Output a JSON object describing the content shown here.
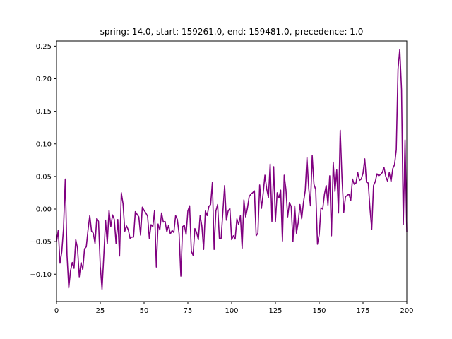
{
  "chart_data": {
    "type": "line",
    "title": "spring: 14.0, start: 159261.0, end: 159481.0, precedence: 1.0",
    "xlabel": "",
    "ylabel": "",
    "xlim": [
      0,
      200
    ],
    "ylim": [
      -0.142,
      0.258
    ],
    "x_ticks": [
      0,
      25,
      50,
      75,
      100,
      125,
      150,
      175,
      200
    ],
    "y_ticks": [
      -0.1,
      -0.05,
      0.0,
      0.05,
      0.1,
      0.15,
      0.2,
      0.25
    ],
    "x_tick_labels": [
      "0",
      "25",
      "50",
      "75",
      "100",
      "125",
      "150",
      "175",
      "200"
    ],
    "y_tick_labels": [
      "−0.10",
      "−0.05",
      "0.00",
      "0.05",
      "0.10",
      "0.15",
      "0.20",
      "0.25"
    ],
    "grid": false,
    "colors": {
      "line": "#800080"
    },
    "series": [
      {
        "x_start": 0,
        "x_step": 1,
        "values": [
          -0.05,
          -0.033,
          -0.083,
          -0.066,
          -0.03,
          0.046,
          -0.071,
          -0.121,
          -0.095,
          -0.082,
          -0.091,
          -0.047,
          -0.06,
          -0.104,
          -0.082,
          -0.093,
          -0.061,
          -0.058,
          -0.032,
          -0.01,
          -0.034,
          -0.037,
          -0.053,
          -0.014,
          -0.019,
          -0.088,
          -0.123,
          -0.072,
          -0.017,
          -0.053,
          -0.002,
          -0.027,
          -0.009,
          -0.016,
          -0.053,
          -0.016,
          -0.072,
          0.025,
          0.008,
          -0.034,
          -0.026,
          -0.032,
          -0.045,
          -0.043,
          -0.043,
          -0.004,
          -0.008,
          -0.012,
          -0.04,
          0.003,
          -0.002,
          -0.006,
          -0.011,
          -0.045,
          -0.024,
          -0.027,
          -0.002,
          -0.089,
          -0.023,
          -0.032,
          -0.006,
          -0.02,
          -0.019,
          -0.035,
          -0.025,
          -0.038,
          -0.033,
          -0.036,
          -0.01,
          -0.016,
          -0.038,
          -0.103,
          -0.027,
          -0.025,
          -0.039,
          -0.003,
          0.005,
          -0.065,
          -0.071,
          -0.03,
          -0.036,
          -0.047,
          -0.01,
          -0.026,
          -0.062,
          -0.003,
          -0.01,
          0.004,
          0.007,
          0.041,
          -0.062,
          -0.003,
          0.007,
          -0.045,
          -0.045,
          -0.004,
          0.036,
          -0.017,
          -0.003,
          0.001,
          -0.047,
          -0.041,
          -0.046,
          -0.015,
          -0.024,
          -0.01,
          -0.06,
          0.014,
          -0.012,
          0.001,
          0.019,
          0.023,
          0.025,
          0.028,
          -0.041,
          -0.037,
          0.037,
          0.001,
          0.024,
          0.052,
          0.031,
          0.018,
          0.069,
          -0.019,
          0.065,
          -0.019,
          0.025,
          0.017,
          0.029,
          -0.049,
          0.052,
          0.03,
          -0.012,
          0.01,
          0.004,
          -0.05,
          0.005,
          -0.037,
          -0.021,
          0.007,
          -0.015,
          0.01,
          0.028,
          0.079,
          0.032,
          0.005,
          0.082,
          0.038,
          0.03,
          -0.054,
          -0.039,
          0.002,
          0.0,
          0.023,
          0.036,
          0.006,
          0.051,
          -0.041,
          0.072,
          0.027,
          0.06,
          -0.006,
          0.121,
          0.048,
          -0.005,
          0.019,
          0.021,
          0.023,
          0.013,
          0.046,
          0.038,
          0.04,
          0.056,
          0.044,
          0.046,
          0.055,
          0.077,
          0.041,
          0.04,
          0.0,
          -0.031,
          0.036,
          0.042,
          0.054,
          0.051,
          0.053,
          0.056,
          0.064,
          0.05,
          0.043,
          0.056,
          0.042,
          0.062,
          0.068,
          0.091,
          0.215,
          0.245,
          0.183,
          -0.024,
          0.106,
          -0.035
        ]
      }
    ]
  }
}
